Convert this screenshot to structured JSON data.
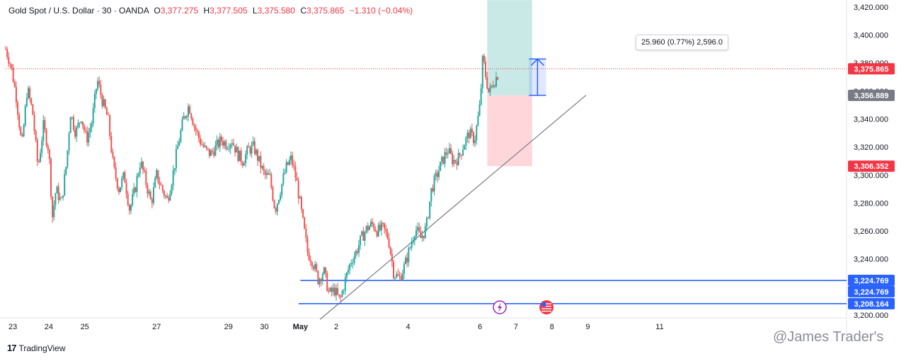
{
  "legend": {
    "symbol": "Gold Spot / U.S. Dollar · 30 · OANDA",
    "open_key": "O",
    "open": "3,377.275",
    "high_key": "H",
    "high": "3,377.505",
    "low_key": "L",
    "low": "3,375.580",
    "close_key": "C",
    "close": "3,375.865",
    "change": "−1.310 (−0.04%)"
  },
  "measure_label": "25.960 (0.77%) 2,596.0",
  "branding": {
    "logo": "17",
    "name": "TradingView"
  },
  "watermark": "@James Trader's",
  "icons": {
    "lightning": "lightning-icon",
    "us_flag": "us-flag-icon"
  },
  "colors": {
    "up": "#26a69a",
    "down": "#ef5350",
    "hline": "#2962ff",
    "last_price": "#f23645",
    "profit_zone": "#b2dfdb",
    "loss_zone": "#ffcdd2",
    "entry_tag": "#787b86",
    "trendline": "#787b86"
  },
  "chart_data": {
    "type": "candlestick",
    "y_axis": {
      "range": [
        3198,
        3425
      ],
      "ticks": [
        3200,
        3220,
        3240,
        3260,
        3280,
        3300,
        3320,
        3340,
        3360,
        3380,
        3400,
        3420
      ],
      "tick_labels": [
        "3,200.000",
        "3,220.000",
        "3,240.000",
        "3,260.000",
        "3,280.000",
        "3,300.000",
        "3,320.000",
        "3,340.000",
        "3,360.000",
        "3,380.000",
        "3,400.000",
        "3,420.000"
      ]
    },
    "x_axis": {
      "range": [
        22.8,
        46.2
      ],
      "ticks": [
        23,
        24,
        25,
        27,
        29,
        30,
        31,
        32,
        34,
        36,
        37,
        38,
        39,
        41
      ],
      "tick_labels": [
        "23",
        "24",
        "25",
        "27",
        "29",
        "30",
        "May",
        "2",
        "4",
        "6",
        "7",
        "8",
        "9",
        "11"
      ],
      "tick_units": "day (April 23 – May 11)"
    },
    "price_path": [
      [
        22.8,
        3390
      ],
      [
        22.95,
        3378
      ],
      [
        23.1,
        3355
      ],
      [
        23.25,
        3320
      ],
      [
        23.4,
        3362
      ],
      [
        23.55,
        3345
      ],
      [
        23.7,
        3305
      ],
      [
        23.85,
        3335
      ],
      [
        24.0,
        3318
      ],
      [
        24.1,
        3270
      ],
      [
        24.2,
        3290
      ],
      [
        24.35,
        3280
      ],
      [
        24.5,
        3310
      ],
      [
        24.6,
        3345
      ],
      [
        24.75,
        3330
      ],
      [
        24.9,
        3342
      ],
      [
        25.05,
        3325
      ],
      [
        25.2,
        3338
      ],
      [
        25.35,
        3368
      ],
      [
        25.5,
        3352
      ],
      [
        25.65,
        3340
      ],
      [
        25.8,
        3305
      ],
      [
        25.95,
        3290
      ],
      [
        26.1,
        3300
      ],
      [
        26.25,
        3275
      ],
      [
        26.4,
        3290
      ],
      [
        26.55,
        3310
      ],
      [
        26.7,
        3295
      ],
      [
        26.85,
        3280
      ],
      [
        27.0,
        3300
      ],
      [
        27.15,
        3290
      ],
      [
        27.3,
        3282
      ],
      [
        27.45,
        3300
      ],
      [
        27.6,
        3322
      ],
      [
        27.75,
        3340
      ],
      [
        27.9,
        3350
      ],
      [
        28.05,
        3335
      ],
      [
        28.2,
        3325
      ],
      [
        28.35,
        3318
      ],
      [
        28.5,
        3315
      ],
      [
        28.65,
        3320
      ],
      [
        28.8,
        3325
      ],
      [
        28.95,
        3322
      ],
      [
        29.1,
        3325
      ],
      [
        29.25,
        3315
      ],
      [
        29.4,
        3310
      ],
      [
        29.55,
        3318
      ],
      [
        29.7,
        3320
      ],
      [
        29.85,
        3310
      ],
      [
        30.0,
        3300
      ],
      [
        30.15,
        3298
      ],
      [
        30.3,
        3275
      ],
      [
        30.45,
        3290
      ],
      [
        30.6,
        3305
      ],
      [
        30.75,
        3312
      ],
      [
        30.9,
        3295
      ],
      [
        31.05,
        3270
      ],
      [
        31.2,
        3245
      ],
      [
        31.35,
        3238
      ],
      [
        31.5,
        3225
      ],
      [
        31.65,
        3232
      ],
      [
        31.8,
        3215
      ],
      [
        31.95,
        3218
      ],
      [
        32.1,
        3210
      ],
      [
        32.25,
        3225
      ],
      [
        32.4,
        3238
      ],
      [
        32.55,
        3245
      ],
      [
        32.7,
        3255
      ],
      [
        32.85,
        3262
      ],
      [
        33.0,
        3265
      ],
      [
        33.15,
        3260
      ],
      [
        33.3,
        3262
      ],
      [
        33.45,
        3255
      ],
      [
        33.6,
        3230
      ],
      [
        33.75,
        3226
      ],
      [
        33.9,
        3235
      ],
      [
        34.05,
        3248
      ],
      [
        34.2,
        3262
      ],
      [
        34.35,
        3255
      ],
      [
        34.5,
        3262
      ],
      [
        34.65,
        3290
      ],
      [
        34.8,
        3300
      ],
      [
        34.95,
        3310
      ],
      [
        35.1,
        3318
      ],
      [
        35.25,
        3310
      ],
      [
        35.4,
        3312
      ],
      [
        35.55,
        3322
      ],
      [
        35.7,
        3330
      ],
      [
        35.85,
        3325
      ],
      [
        36.0,
        3350
      ],
      [
        36.08,
        3385
      ],
      [
        36.15,
        3372
      ],
      [
        36.25,
        3358
      ],
      [
        36.35,
        3365
      ],
      [
        36.5,
        3372
      ]
    ],
    "horizontal_lines": [
      {
        "y": 3224.769,
        "label": "3,224.769",
        "x_start": 31.0
      },
      {
        "y": 3208.164,
        "label": "3,208.164",
        "x_start": 30.95
      }
    ],
    "extra_tag": {
      "label": "3,224.769"
    },
    "trendline": {
      "from": [
        31.55,
        3197
      ],
      "to": [
        38.95,
        3357
      ]
    },
    "position_tool": {
      "x_start": 36.2,
      "x_end": 37.45,
      "entry": 3356.889,
      "target": 3424.9,
      "stop": 3306.352
    },
    "last_price": {
      "value": 3375.865,
      "label": "3,375.865"
    },
    "entry_tag": {
      "label": "3,356.889"
    },
    "stop_tag": {
      "label": "3,306.352"
    },
    "measure": {
      "x": 37.6,
      "from": 3356.889,
      "to": 3382.849
    },
    "event_markers": [
      {
        "x": 36.55,
        "icon": "lightning"
      },
      {
        "x": 37.85,
        "icon": "us_flag"
      }
    ]
  }
}
